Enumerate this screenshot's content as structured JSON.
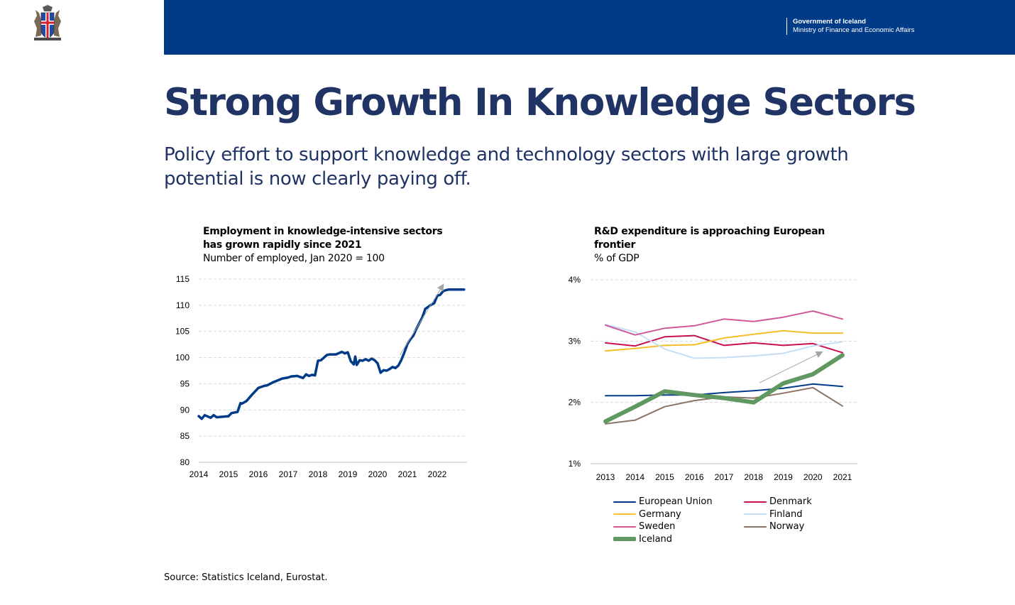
{
  "header": {
    "org_name": "Government of Iceland",
    "ministry": "Ministry of Finance and Economic Affairs",
    "banner_color": "#003b87",
    "logo_icon": "coat-of-arms-icon"
  },
  "title": "Strong Growth In Knowledge Sectors",
  "subtitle": "Policy effort to support knowledge and technology sectors with large growth potential is now clearly paying off.",
  "source": "Source: Statistics Iceland, Eurostat.",
  "chart_data": [
    {
      "type": "line",
      "title": "Employment in knowledge-intensive sectors has grown rapidly since 2021",
      "subtitle": "Number of employed, Jan 2020 = 100",
      "xlabel": "",
      "ylabel": "",
      "xlim": [
        2014,
        2023
      ],
      "ylim": [
        80,
        115
      ],
      "x_ticks": [
        "2014",
        "2015",
        "2016",
        "2017",
        "2018",
        "2019",
        "2020",
        "2021",
        "2022"
      ],
      "y_ticks": [
        "80",
        "85",
        "90",
        "95",
        "100",
        "105",
        "110",
        "115"
      ],
      "grid": true,
      "annotation": "trend-arrow",
      "series": [
        {
          "color": "#003b87",
          "x": [
            2014.0,
            2014.1,
            2014.2,
            2014.4,
            2014.5,
            2014.6,
            2014.8,
            2015.0,
            2015.1,
            2015.3,
            2015.4,
            2015.45,
            2015.6,
            2015.8,
            2016.0,
            2016.2,
            2016.3,
            2016.5,
            2016.8,
            2017.0,
            2017.1,
            2017.3,
            2017.5,
            2017.6,
            2017.7,
            2017.8,
            2017.9,
            2018.0,
            2018.1,
            2018.2,
            2018.3,
            2018.4,
            2018.6,
            2018.8,
            2018.9,
            2019.0,
            2019.1,
            2019.2,
            2019.25,
            2019.3,
            2019.4,
            2019.5,
            2019.6,
            2019.7,
            2019.8,
            2019.9,
            2020.0,
            2020.1,
            2020.2,
            2020.3,
            2020.4,
            2020.5,
            2020.6,
            2020.7,
            2020.8,
            2020.9,
            2021.0,
            2021.1,
            2021.2,
            2021.3,
            2021.4,
            2021.5,
            2021.6,
            2021.7,
            2021.8,
            2021.9,
            2022.0,
            2022.1,
            2022.2,
            2022.3,
            2022.4,
            2022.5,
            2022.55,
            2022.7,
            2022.8,
            2022.9
          ],
          "values": [
            88.8,
            88.3,
            89.0,
            88.5,
            89.0,
            88.6,
            88.7,
            88.8,
            89.4,
            89.6,
            91.3,
            91.2,
            91.7,
            93.0,
            94.2,
            94.6,
            94.7,
            95.3,
            96.0,
            96.2,
            96.4,
            96.5,
            96.1,
            96.8,
            96.5,
            96.7,
            96.6,
            99.4,
            99.5,
            100.0,
            100.5,
            100.6,
            100.6,
            101.1,
            100.8,
            101.0,
            99.3,
            98.7,
            100.2,
            98.6,
            99.5,
            99.4,
            99.7,
            99.4,
            99.8,
            99.5,
            98.9,
            97.1,
            97.6,
            97.5,
            97.8,
            98.2,
            98.0,
            98.5,
            99.6,
            101.0,
            102.6,
            103.5,
            104.2,
            105.5,
            106.6,
            107.7,
            109.3,
            109.7,
            110.1,
            110.4,
            111.8,
            112.0,
            112.7,
            112.9,
            113.0,
            113.0,
            113.0,
            113.0,
            113.0,
            113.0
          ]
        }
      ]
    },
    {
      "type": "line",
      "title": "R&D expenditure is approaching European frontier",
      "subtitle": "% of GDP",
      "xlabel": "",
      "ylabel": "",
      "categories": [
        "2013",
        "2014",
        "2015",
        "2016",
        "2017",
        "2018",
        "2019",
        "2020",
        "2021"
      ],
      "ylim": [
        1,
        4
      ],
      "y_ticks": [
        "1%",
        "2%",
        "3%",
        "4%"
      ],
      "grid": true,
      "legend": "bottom",
      "annotation": "trend-arrow",
      "series": [
        {
          "name": "European Union",
          "color": "#003b87",
          "width": 2,
          "values": [
            2.11,
            2.11,
            2.12,
            2.12,
            2.16,
            2.19,
            2.23,
            2.3,
            2.26
          ]
        },
        {
          "name": "Denmark",
          "color": "#c8104e",
          "width": 2,
          "values": [
            2.97,
            2.92,
            3.07,
            3.09,
            2.93,
            2.97,
            2.93,
            2.96,
            2.81
          ]
        },
        {
          "name": "Germany",
          "color": "#f6be28",
          "width": 2,
          "values": [
            2.84,
            2.88,
            2.93,
            2.94,
            3.05,
            3.11,
            3.17,
            3.13,
            3.13
          ]
        },
        {
          "name": "Finland",
          "color": "#c6dff5",
          "width": 2,
          "values": [
            3.27,
            3.15,
            2.87,
            2.72,
            2.73,
            2.76,
            2.8,
            2.92,
            2.99
          ]
        },
        {
          "name": "Sweden",
          "color": "#d0589a",
          "width": 2,
          "values": [
            3.26,
            3.1,
            3.21,
            3.25,
            3.36,
            3.32,
            3.39,
            3.49,
            3.36
          ]
        },
        {
          "name": "Norway",
          "color": "#8c7364",
          "width": 2,
          "values": [
            1.65,
            1.71,
            1.93,
            2.03,
            2.09,
            2.07,
            2.15,
            2.24,
            1.94
          ]
        },
        {
          "name": "Iceland",
          "color": "#5f9860",
          "width": 6,
          "values": [
            1.69,
            1.93,
            2.18,
            2.12,
            2.07,
            2.0,
            2.31,
            2.46,
            2.77
          ]
        }
      ]
    }
  ]
}
